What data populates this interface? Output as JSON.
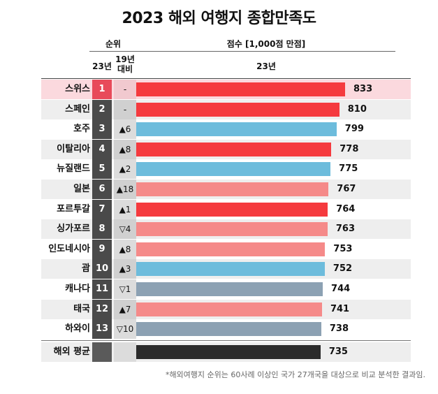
{
  "title": "2023 해외 여행지 종합만족도",
  "header": {
    "rank_group": "순위",
    "rank_23": "23년",
    "rank_19_line1": "19년",
    "rank_19_line2": "대비",
    "score_title": "점수 [1,000점 만점]",
    "score_year": "23년"
  },
  "colors": {
    "red": "#f53a3e",
    "pink": "#f58a89",
    "blue": "#6dbcdc",
    "gray": "#8ca1b3",
    "black": "#2b2b2b",
    "highlight_row": "#fbd9de",
    "stripe_row": "#eeeeee",
    "rank_box": "#4a4a4a",
    "rank_box_light": "#5a5a5a",
    "change_box": "#dcdcdc",
    "change_box_alt": "#d0d0d0"
  },
  "chart_data": {
    "type": "bar",
    "orientation": "horizontal",
    "title": "2023 해외 여행지 종합만족도",
    "value_label": "점수 [1,000점 만점]",
    "series_name": "23년",
    "xlim": [
      0,
      1000
    ],
    "categories": [
      "스위스",
      "스페인",
      "호주",
      "이탈리아",
      "뉴질랜드",
      "일본",
      "포르투갈",
      "싱가포르",
      "인도네시아",
      "괌",
      "캐나다",
      "태국",
      "하와이",
      "해외 평균"
    ],
    "values": [
      833,
      810,
      799,
      778,
      775,
      767,
      764,
      763,
      753,
      752,
      744,
      741,
      738,
      735
    ],
    "rank_2023": [
      "1",
      "2",
      "3",
      "4",
      "5",
      "6",
      "7",
      "8",
      "9",
      "10",
      "11",
      "12",
      "13",
      ""
    ],
    "change_vs_2019": [
      "-",
      "-",
      "▲6",
      "▲8",
      "▲2",
      "▲18",
      "▲1",
      "▽4",
      "▲8",
      "▲3",
      "▽1",
      "▲7",
      "▽10",
      ""
    ],
    "bar_colors": [
      "red",
      "red",
      "blue",
      "red",
      "blue",
      "pink",
      "red",
      "pink",
      "pink",
      "blue",
      "gray",
      "pink",
      "gray",
      "black"
    ]
  },
  "footnote": "*해외여행지 순위는 60사례 이상인 국가 27개국을 대상으로 비교 분석한 결과임."
}
